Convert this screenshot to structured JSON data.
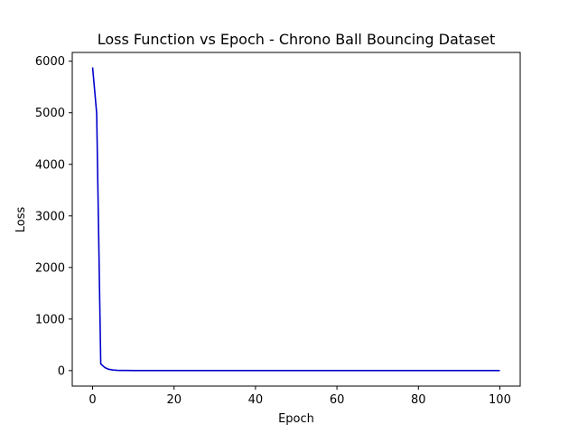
{
  "chart_data": {
    "type": "line",
    "title": "Loss Function vs Epoch - Chrono Ball Bouncing Dataset",
    "xlabel": "Epoch",
    "ylabel": "Loss",
    "xlim": [
      -5,
      105
    ],
    "ylim": [
      -300,
      6170
    ],
    "xticks": [
      0,
      20,
      40,
      60,
      80,
      100
    ],
    "yticks": [
      0,
      1000,
      2000,
      3000,
      4000,
      5000,
      6000
    ],
    "grid": false,
    "series": [
      {
        "color": "#0000cc",
        "x": [
          0,
          1,
          2,
          3,
          4,
          5,
          6,
          7,
          8,
          10,
          15,
          20,
          30,
          40,
          50,
          60,
          70,
          80,
          90,
          100
        ],
        "y": [
          5880,
          4990,
          130,
          60,
          25,
          12,
          6,
          4,
          3,
          2,
          2,
          2,
          2,
          2,
          2,
          2,
          2,
          2,
          2,
          2
        ]
      }
    ]
  }
}
